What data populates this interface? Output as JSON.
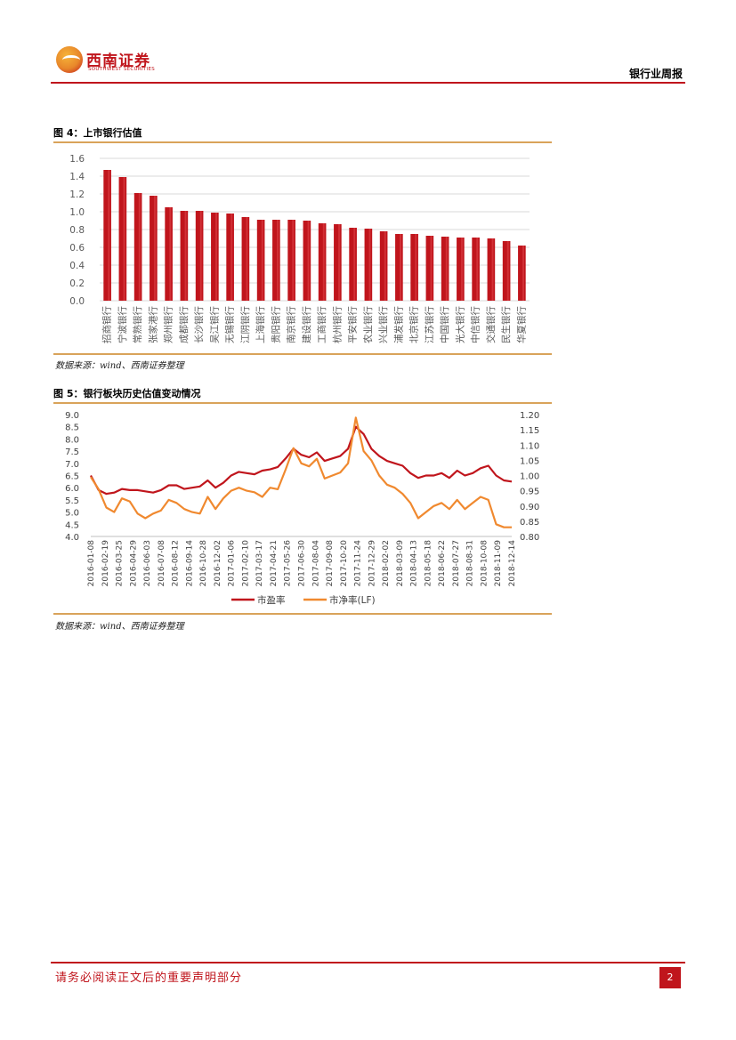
{
  "header": {
    "brand_cn": "西南证券",
    "brand_en": "SOUTHWEST SECURITIES",
    "report_title": "银行业周报"
  },
  "figure4": {
    "title": "图 4：上市银行估值",
    "source": "数据来源：wind、西南证券整理"
  },
  "figure5": {
    "title": "图 5：银行板块历史估值变动情况",
    "source": "数据来源：wind、西南证券整理"
  },
  "colors": {
    "brand_red": "#c0151c",
    "bar_red": "#c0151c",
    "pe_line": "#c0151c",
    "pb_line": "#f0892f",
    "rule_gold": "#d9a35a"
  },
  "chart_data": [
    {
      "type": "bar",
      "categories": [
        "招商银行",
        "宁波银行",
        "常熟银行",
        "张家港行",
        "郑州银行",
        "成都银行",
        "长沙银行",
        "吴江银行",
        "无锡银行",
        "江阴银行",
        "上海银行",
        "贵阳银行",
        "南京银行",
        "建设银行",
        "工商银行",
        "杭州银行",
        "平安银行",
        "农业银行",
        "兴业银行",
        "浦发银行",
        "北京银行",
        "江苏银行",
        "中国银行",
        "光大银行",
        "中信银行",
        "交通银行",
        "民生银行",
        "华夏银行"
      ],
      "values": [
        1.47,
        1.39,
        1.21,
        1.18,
        1.05,
        1.01,
        1.01,
        0.99,
        0.98,
        0.94,
        0.91,
        0.91,
        0.91,
        0.9,
        0.87,
        0.86,
        0.82,
        0.81,
        0.78,
        0.75,
        0.75,
        0.73,
        0.72,
        0.71,
        0.71,
        0.7,
        0.67,
        0.62
      ],
      "ylim": [
        0,
        1.6
      ],
      "yticks": [
        "0.0",
        "0.2",
        "0.4",
        "0.6",
        "0.8",
        "1.0",
        "1.2",
        "1.4",
        "1.6"
      ],
      "grid": true,
      "legend": "none"
    },
    {
      "type": "line",
      "x_ticks": [
        "2016-01-08",
        "2016-02-19",
        "2016-03-25",
        "2016-04-29",
        "2016-06-03",
        "2016-07-08",
        "2016-08-12",
        "2016-09-14",
        "2016-10-28",
        "2016-12-02",
        "2017-01-06",
        "2017-02-10",
        "2017-03-17",
        "2017-04-21",
        "2017-05-26",
        "2017-06-30",
        "2017-08-04",
        "2017-09-08",
        "2017-10-20",
        "2017-11-24",
        "2017-12-29",
        "2018-02-02",
        "2018-03-09",
        "2018-04-13",
        "2018-05-18",
        "2018-06-22",
        "2018-07-27",
        "2018-08-31",
        "2018-10-08",
        "2018-11-09",
        "2018-12-14"
      ],
      "y_left_ticks": [
        "4.0",
        "4.5",
        "5.0",
        "5.5",
        "6.0",
        "6.5",
        "7.0",
        "7.5",
        "8.0",
        "8.5",
        "9.0"
      ],
      "y_left_lim": [
        4.0,
        9.0
      ],
      "y_right_ticks": [
        "0.80",
        "0.85",
        "0.90",
        "0.95",
        "1.00",
        "1.05",
        "1.10",
        "1.15",
        "1.20"
      ],
      "y_right_lim": [
        0.8,
        1.2
      ],
      "legend": "bottom",
      "series": [
        {
          "name": "市盈率",
          "axis": "left",
          "values": [
            6.5,
            5.9,
            5.75,
            5.8,
            5.95,
            5.9,
            5.9,
            5.85,
            5.8,
            5.9,
            6.1,
            6.1,
            5.95,
            6.0,
            6.05,
            6.3,
            6.0,
            6.2,
            6.5,
            6.65,
            6.6,
            6.55,
            6.7,
            6.75,
            6.85,
            7.2,
            7.6,
            7.35,
            7.25,
            7.45,
            7.1,
            7.2,
            7.3,
            7.6,
            8.5,
            8.2,
            7.6,
            7.3,
            7.1,
            7.0,
            6.9,
            6.6,
            6.4,
            6.5,
            6.5,
            6.6,
            6.4,
            6.7,
            6.5,
            6.6,
            6.8,
            6.9,
            6.5,
            6.3,
            6.25
          ]
        },
        {
          "name": "市净率(LF)",
          "axis": "right",
          "values": [
            0.995,
            0.955,
            0.895,
            0.88,
            0.925,
            0.915,
            0.875,
            0.86,
            0.875,
            0.885,
            0.92,
            0.91,
            0.89,
            0.88,
            0.875,
            0.93,
            0.89,
            0.925,
            0.95,
            0.96,
            0.95,
            0.945,
            0.93,
            0.96,
            0.955,
            1.02,
            1.09,
            1.04,
            1.03,
            1.055,
            0.99,
            1.0,
            1.01,
            1.04,
            1.19,
            1.08,
            1.05,
            1.0,
            0.97,
            0.96,
            0.94,
            0.91,
            0.86,
            0.88,
            0.9,
            0.91,
            0.89,
            0.92,
            0.89,
            0.91,
            0.93,
            0.92,
            0.84,
            0.83,
            0.83
          ]
        }
      ]
    }
  ],
  "footer": {
    "disclaimer": "请务必阅读正文后的重要声明部分",
    "page_number": "2"
  }
}
